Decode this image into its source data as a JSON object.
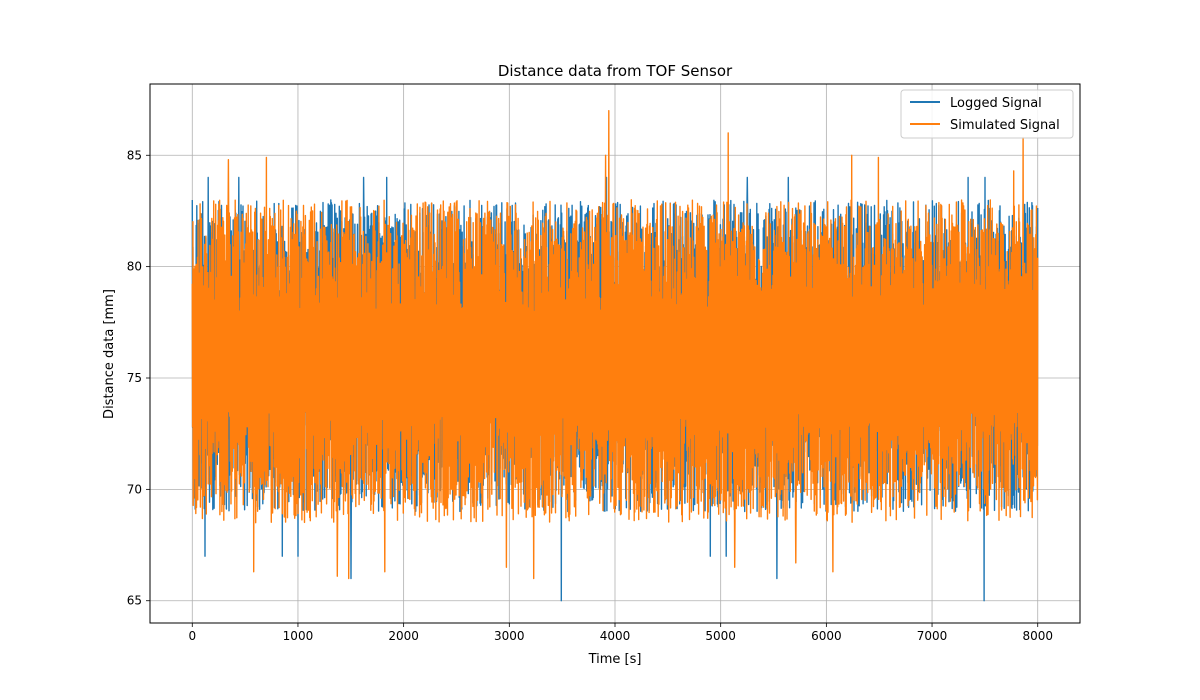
{
  "chart_data": {
    "type": "line",
    "title": "Distance data from TOF Sensor",
    "xlabel": "Time [s]",
    "ylabel": "Distance data [mm]",
    "xlim": [
      -400,
      8400
    ],
    "ylim": [
      64,
      88.2
    ],
    "x_range": [
      0,
      8000
    ],
    "x_ticks": [
      0,
      1000,
      2000,
      3000,
      4000,
      5000,
      6000,
      7000,
      8000
    ],
    "y_ticks": [
      65,
      70,
      75,
      80,
      85
    ],
    "grid": true,
    "legend_position": "top-right",
    "series": [
      {
        "name": "Logged Signal",
        "color": "#1f77b4",
        "band": [
          69,
          83
        ],
        "extremes": [
          {
            "x": 3490,
            "y": 65
          },
          {
            "x": 7490,
            "y": 65
          },
          {
            "x": 5530,
            "y": 66
          },
          {
            "x": 1500,
            "y": 66
          },
          {
            "x": 120,
            "y": 67
          },
          {
            "x": 850,
            "y": 67
          },
          {
            "x": 1000,
            "y": 67
          },
          {
            "x": 4900,
            "y": 67
          },
          {
            "x": 5050,
            "y": 67
          },
          {
            "x": 150,
            "y": 84
          },
          {
            "x": 440,
            "y": 84
          },
          {
            "x": 1620,
            "y": 84
          },
          {
            "x": 1840,
            "y": 84
          },
          {
            "x": 3920,
            "y": 84
          },
          {
            "x": 5250,
            "y": 84
          },
          {
            "x": 5640,
            "y": 84
          },
          {
            "x": 7340,
            "y": 84
          },
          {
            "x": 7500,
            "y": 84
          }
        ]
      },
      {
        "name": "Simulated Signal",
        "color": "#ff7f0e",
        "band": [
          68.5,
          83
        ],
        "extremes": [
          {
            "x": 3940,
            "y": 87
          },
          {
            "x": 5070,
            "y": 86
          },
          {
            "x": 7860,
            "y": 85.8
          },
          {
            "x": 340,
            "y": 84.8
          },
          {
            "x": 700,
            "y": 84.9
          },
          {
            "x": 3910,
            "y": 85
          },
          {
            "x": 6240,
            "y": 85
          },
          {
            "x": 6490,
            "y": 84.9
          },
          {
            "x": 7770,
            "y": 84.3
          },
          {
            "x": 1370,
            "y": 66.1
          },
          {
            "x": 1480,
            "y": 66
          },
          {
            "x": 3230,
            "y": 66
          },
          {
            "x": 580,
            "y": 66.3
          },
          {
            "x": 1820,
            "y": 66.3
          },
          {
            "x": 6060,
            "y": 66.3
          },
          {
            "x": 2970,
            "y": 66.5
          },
          {
            "x": 5130,
            "y": 66.5
          },
          {
            "x": 5710,
            "y": 66.7
          }
        ]
      }
    ]
  }
}
